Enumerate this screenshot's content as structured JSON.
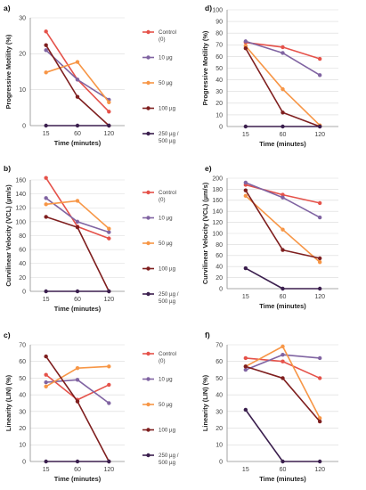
{
  "panels": [
    "a)",
    "b)",
    "c)",
    "d)",
    "e)",
    "f)"
  ],
  "legend_series": [
    "Control (0)",
    "10 µg",
    "50 µg",
    "100 µg",
    "250 µg / 500 µg"
  ],
  "colors": {
    "Control (0)": "#e5524a",
    "10 µg": "#8064a2",
    "50 µg": "#f79646",
    "100 µg": "#7f1f1f",
    "250 µg / 500 µg": "#3b1f4e"
  },
  "chart_data": [
    {
      "panel": "a)",
      "type": "line",
      "categories": [
        "15",
        "60",
        "120"
      ],
      "xlabel": "Time (minutes)",
      "ylabel": "Progressive Motility (%)",
      "ylim": [
        0,
        30
      ],
      "yticks": [
        0,
        10,
        20,
        30
      ],
      "grid": true,
      "legend": "right",
      "series": [
        {
          "name": "Control (0)",
          "values": [
            26.2,
            12.8,
            3.9
          ]
        },
        {
          "name": "10 µg",
          "values": [
            21.0,
            12.8,
            7.2
          ]
        },
        {
          "name": "50 µg",
          "values": [
            14.8,
            17.7,
            6.5
          ]
        },
        {
          "name": "100 µg",
          "values": [
            22.4,
            8.0,
            0
          ]
        },
        {
          "name": "250 µg / 500 µg",
          "values": [
            0,
            0,
            0
          ]
        }
      ]
    },
    {
      "panel": "b)",
      "type": "line",
      "categories": [
        "15",
        "60",
        "120"
      ],
      "xlabel": "Time (minutes)",
      "ylabel": "Curvilinear Velocity (VCL) (µm/s)",
      "ylim": [
        0,
        160
      ],
      "yticks": [
        0,
        20,
        40,
        60,
        80,
        100,
        120,
        140,
        160
      ],
      "grid": true,
      "legend": "right",
      "series": [
        {
          "name": "Control (0)",
          "values": [
            163,
            93,
            76
          ]
        },
        {
          "name": "10 µg",
          "values": [
            134,
            100,
            85
          ]
        },
        {
          "name": "50 µg",
          "values": [
            125,
            130,
            90
          ]
        },
        {
          "name": "100 µg",
          "values": [
            107,
            92,
            0
          ]
        },
        {
          "name": "250 µg / 500 µg",
          "values": [
            0,
            0,
            0
          ]
        }
      ]
    },
    {
      "panel": "c)",
      "type": "line",
      "categories": [
        "15",
        "60",
        "120"
      ],
      "xlabel": "Time (minutes)",
      "ylabel": "Linearity (LIN) (%)",
      "ylim": [
        0,
        70
      ],
      "yticks": [
        0,
        10,
        20,
        30,
        40,
        50,
        60,
        70
      ],
      "grid": true,
      "legend": "right",
      "series": [
        {
          "name": "Control (0)",
          "values": [
            52,
            37,
            46
          ]
        },
        {
          "name": "10 µg",
          "values": [
            47.5,
            49,
            35
          ]
        },
        {
          "name": "50 µg",
          "values": [
            45,
            56,
            57
          ]
        },
        {
          "name": "100 µg",
          "values": [
            63,
            36,
            0
          ]
        },
        {
          "name": "250 µg / 500 µg",
          "values": [
            0,
            0,
            0
          ]
        }
      ]
    },
    {
      "panel": "d)",
      "type": "line",
      "categories": [
        "15",
        "60",
        "120"
      ],
      "xlabel": "Time (minutes)",
      "ylabel": "Progressive Motility (%)",
      "ylim": [
        0,
        100
      ],
      "yticks": [
        0,
        10,
        20,
        30,
        40,
        50,
        60,
        70,
        80,
        90,
        100
      ],
      "grid": true,
      "legend": "none",
      "series": [
        {
          "name": "Control (0)",
          "values": [
            72,
            68,
            58
          ]
        },
        {
          "name": "10 µg",
          "values": [
            73,
            63,
            44
          ]
        },
        {
          "name": "50 µg",
          "values": [
            69,
            32,
            1
          ]
        },
        {
          "name": "100 µg",
          "values": [
            67,
            12,
            0
          ]
        },
        {
          "name": "250 µg / 500 µg",
          "values": [
            0,
            0,
            0
          ]
        }
      ]
    },
    {
      "panel": "e)",
      "type": "line",
      "categories": [
        "15",
        "60",
        "120"
      ],
      "xlabel": "Time (minutes)",
      "ylabel": "Curvilinear Velocity (VCL) (µm/s)",
      "ylim": [
        0,
        200
      ],
      "yticks": [
        0,
        20,
        40,
        60,
        80,
        100,
        120,
        140,
        160,
        180,
        200
      ],
      "grid": true,
      "legend": "none",
      "series": [
        {
          "name": "Control (0)",
          "values": [
            188,
            170,
            155
          ]
        },
        {
          "name": "10 µg",
          "values": [
            192,
            165,
            129
          ]
        },
        {
          "name": "50 µg",
          "values": [
            168,
            107,
            48
          ]
        },
        {
          "name": "100 µg",
          "values": [
            178,
            70,
            55
          ]
        },
        {
          "name": "250 µg / 500 µg",
          "values": [
            37,
            0,
            0
          ]
        }
      ]
    },
    {
      "panel": "f)",
      "type": "line",
      "categories": [
        "15",
        "60",
        "120"
      ],
      "xlabel": "Time (minutes)",
      "ylabel": "Linearity (LIN) (%)",
      "ylim": [
        0,
        70
      ],
      "yticks": [
        0,
        10,
        20,
        30,
        40,
        50,
        60,
        70
      ],
      "grid": true,
      "legend": "none",
      "series": [
        {
          "name": "Control (0)",
          "values": [
            62,
            60,
            50
          ]
        },
        {
          "name": "10 µg",
          "values": [
            55,
            64,
            62
          ]
        },
        {
          "name": "50 µg",
          "values": [
            57,
            69,
            26
          ]
        },
        {
          "name": "100 µg",
          "values": [
            57,
            50,
            24
          ]
        },
        {
          "name": "250 µg / 500 µg",
          "values": [
            31,
            0,
            0
          ]
        }
      ]
    }
  ]
}
